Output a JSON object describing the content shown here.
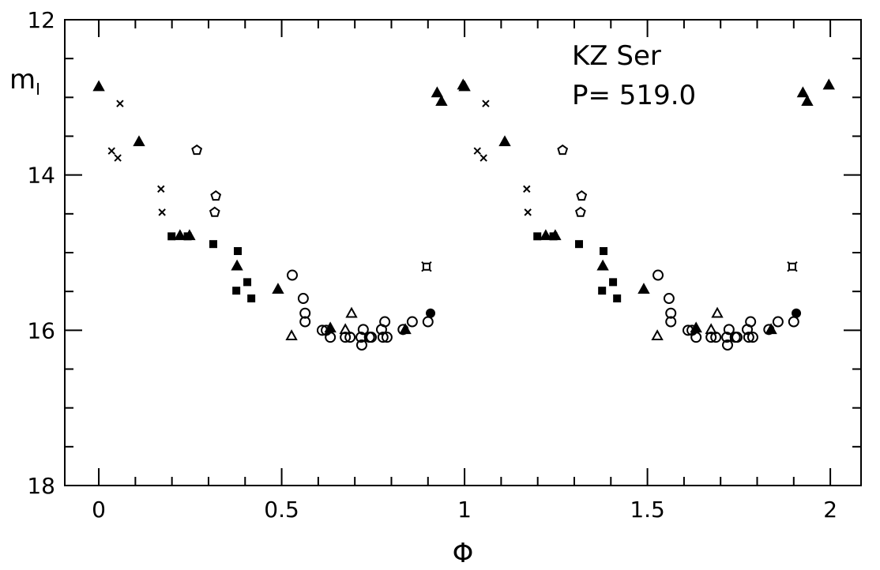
{
  "chart_data": {
    "type": "scatter",
    "title": "",
    "annotations": [
      "KZ Ser",
      "P= 519.0"
    ],
    "xlabel": "Φ",
    "ylabel": "m",
    "ylabel_sub": "I",
    "xlim": [
      -0.093,
      2.084
    ],
    "ylim": [
      12,
      18
    ],
    "y_inverted": true,
    "grid": false,
    "legend": "none",
    "x_ticks": [
      0,
      0.5,
      1,
      1.5,
      2
    ],
    "x_tick_labels": [
      "0",
      "0.5",
      "1",
      "1.5",
      "2"
    ],
    "y_ticks": [
      12,
      14,
      16,
      18
    ],
    "y_tick_labels": [
      "12",
      "14",
      "16",
      "18"
    ],
    "phase_repeat": true,
    "series": [
      {
        "name": "filled-triangle",
        "marker": "triangle-filled",
        "points": [
          [
            0.0,
            12.86
          ],
          [
            0.11,
            13.57
          ],
          [
            0.222,
            14.78
          ],
          [
            0.248,
            14.78
          ],
          [
            0.378,
            15.17
          ],
          [
            0.49,
            15.47
          ],
          [
            0.633,
            15.97
          ],
          [
            0.838,
            15.99
          ],
          [
            0.925,
            12.94
          ],
          [
            0.937,
            13.05
          ],
          [
            0.996,
            12.84
          ]
        ]
      },
      {
        "name": "cross",
        "marker": "cross",
        "points": [
          [
            0.035,
            13.69
          ],
          [
            0.052,
            13.78
          ],
          [
            0.058,
            13.08
          ],
          [
            0.17,
            14.18
          ],
          [
            0.173,
            14.48
          ]
        ]
      },
      {
        "name": "open-pentagon",
        "marker": "pentagon-open",
        "points": [
          [
            0.268,
            13.68
          ],
          [
            0.32,
            14.27
          ],
          [
            0.317,
            14.48
          ]
        ]
      },
      {
        "name": "filled-square",
        "marker": "square-filled",
        "points": [
          [
            0.199,
            14.79
          ],
          [
            0.243,
            14.79
          ],
          [
            0.313,
            14.89
          ],
          [
            0.38,
            14.98
          ],
          [
            0.376,
            15.49
          ],
          [
            0.406,
            15.38
          ],
          [
            0.417,
            15.59
          ]
        ]
      },
      {
        "name": "filled-circle",
        "marker": "circle-filled",
        "points": [
          [
            0.907,
            15.78
          ]
        ]
      },
      {
        "name": "star-square",
        "marker": "star-square",
        "points": [
          [
            0.896,
            15.18
          ]
        ]
      },
      {
        "name": "open-triangle",
        "marker": "triangle-open",
        "points": [
          [
            0.527,
            16.07
          ],
          [
            0.691,
            15.78
          ],
          [
            0.674,
            15.99
          ]
        ]
      },
      {
        "name": "open-circle",
        "marker": "circle-open",
        "points": [
          [
            0.529,
            15.29
          ],
          [
            0.559,
            15.59
          ],
          [
            0.564,
            15.78
          ],
          [
            0.564,
            15.89
          ],
          [
            0.611,
            16.0
          ],
          [
            0.622,
            16.0
          ],
          [
            0.633,
            16.09
          ],
          [
            0.674,
            16.09
          ],
          [
            0.687,
            16.09
          ],
          [
            0.723,
            15.99
          ],
          [
            0.717,
            16.09
          ],
          [
            0.719,
            16.19
          ],
          [
            0.74,
            16.09
          ],
          [
            0.745,
            16.09
          ],
          [
            0.773,
            15.99
          ],
          [
            0.782,
            15.89
          ],
          [
            0.777,
            16.09
          ],
          [
            0.788,
            16.09
          ],
          [
            0.832,
            15.99
          ],
          [
            0.857,
            15.89
          ],
          [
            0.9,
            15.89
          ]
        ]
      }
    ]
  }
}
